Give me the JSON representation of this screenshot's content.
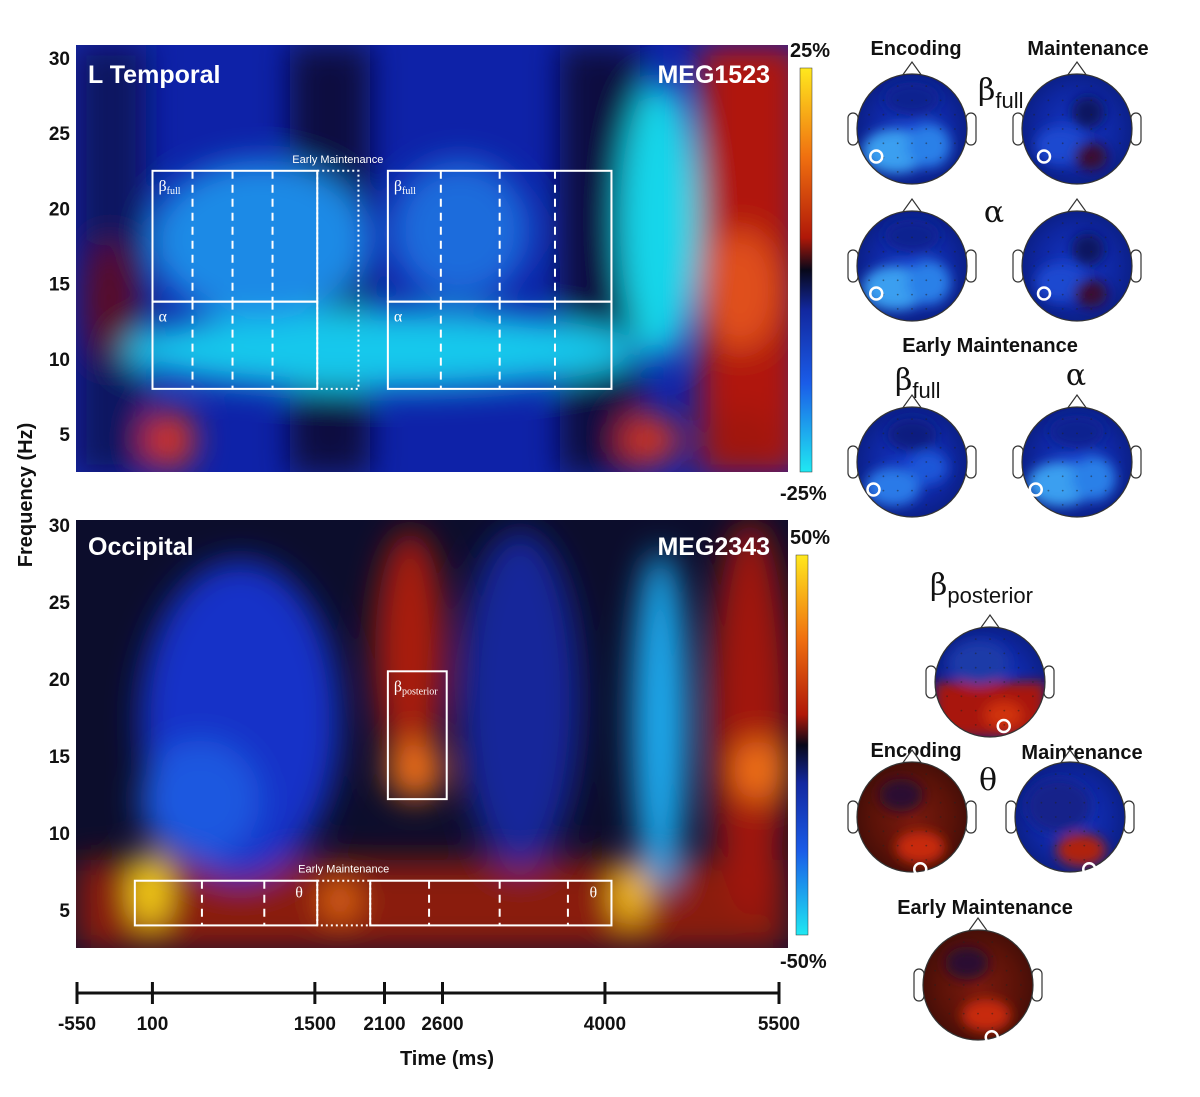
{
  "colors": {
    "cold_max": "#14e8f2",
    "blue": "#1530c8",
    "dark": "#08081a",
    "red": "#c81e0a",
    "hot_max": "#ffe81e",
    "box": "#ffffff"
  },
  "chart_data": [
    {
      "type": "heatmap",
      "title": "L Temporal",
      "sensor": "MEG1523",
      "ylabel": "Frequency (Hz)",
      "yticks": [
        "30",
        "25",
        "20",
        "15",
        "10",
        "5"
      ],
      "ylim": [
        3,
        30
      ],
      "xlim": [
        -550,
        5500
      ],
      "colorbar": {
        "max_label": "25%",
        "min_label": "-25%",
        "range": [
          -25,
          25
        ]
      },
      "windows": [
        {
          "label": "βfull",
          "kind": "encoding",
          "t_start": 100,
          "t_end": 1500,
          "f_low": 13.8,
          "f_high": 22.5,
          "dashes": [
            440,
            780,
            1120
          ]
        },
        {
          "label": "α",
          "kind": "encoding",
          "t_start": 100,
          "t_end": 1500,
          "f_low": 8,
          "f_high": 13.8,
          "dashes": [
            440,
            780,
            1120
          ]
        },
        {
          "label": "",
          "kind": "early",
          "t_start": 1500,
          "t_end": 1850,
          "f_low": 8,
          "f_high": 22.5
        },
        {
          "label": "βfull",
          "kind": "maintenance",
          "t_start": 2100,
          "t_end": 4000,
          "f_low": 13.8,
          "f_high": 22.5,
          "dashes": [
            2550,
            3050,
            3520
          ]
        },
        {
          "label": "α",
          "kind": "maintenance",
          "t_start": 2100,
          "t_end": 4000,
          "f_low": 8,
          "f_high": 13.8,
          "dashes": [
            2550,
            3050,
            3520
          ]
        }
      ],
      "early_label": "Early Maintenance"
    },
    {
      "type": "heatmap",
      "title": "Occipital",
      "sensor": "MEG2343",
      "ylabel": "Frequency (Hz)",
      "yticks": [
        "30",
        "25",
        "20",
        "15",
        "10",
        "5"
      ],
      "ylim": [
        3,
        30
      ],
      "xlim": [
        -550,
        5500
      ],
      "colorbar": {
        "max_label": "50%",
        "min_label": "-50%",
        "range": [
          -50,
          50
        ]
      },
      "windows": [
        {
          "label": "βposterior",
          "kind": "posterior",
          "t_start": 2100,
          "t_end": 2600,
          "f_low": 12.2,
          "f_high": 20.5
        },
        {
          "label": "θ",
          "kind": "encoding",
          "t_start": -50,
          "t_end": 1500,
          "f_low": 4,
          "f_high": 6.9,
          "dashes": [
            520,
            1050
          ]
        },
        {
          "label": "",
          "kind": "early",
          "t_start": 1500,
          "t_end": 1950,
          "f_low": 4,
          "f_high": 6.9
        },
        {
          "label": "θ",
          "kind": "maintenance",
          "t_start": 1950,
          "t_end": 4000,
          "f_low": 4,
          "f_high": 6.9,
          "dashes": [
            2450,
            3050,
            3630
          ]
        }
      ],
      "early_label": "Early Maintenance"
    }
  ],
  "time_axis": {
    "label": "Time (ms)",
    "range": [
      -550,
      5500
    ],
    "tick_values": [
      -550,
      100,
      1500,
      2100,
      2600,
      4000,
      5500
    ],
    "tick_labels": [
      "-550",
      "100",
      "1500",
      "2100",
      "2600",
      "4000",
      "5500"
    ]
  },
  "topomaps": {
    "top": {
      "encoding_label": "Encoding",
      "maintenance_label": "Maintenance",
      "beta_symbol": "β",
      "beta_sub": "full",
      "alpha_symbol": "α",
      "early_label": "Early Maintenance"
    },
    "bottom": {
      "beta_symbol": "β",
      "beta_sub": "posterior",
      "encoding_label": "Encoding",
      "maintenance_label": "Maintenance",
      "theta_symbol": "θ",
      "early_label": "Early Maintenance"
    }
  }
}
